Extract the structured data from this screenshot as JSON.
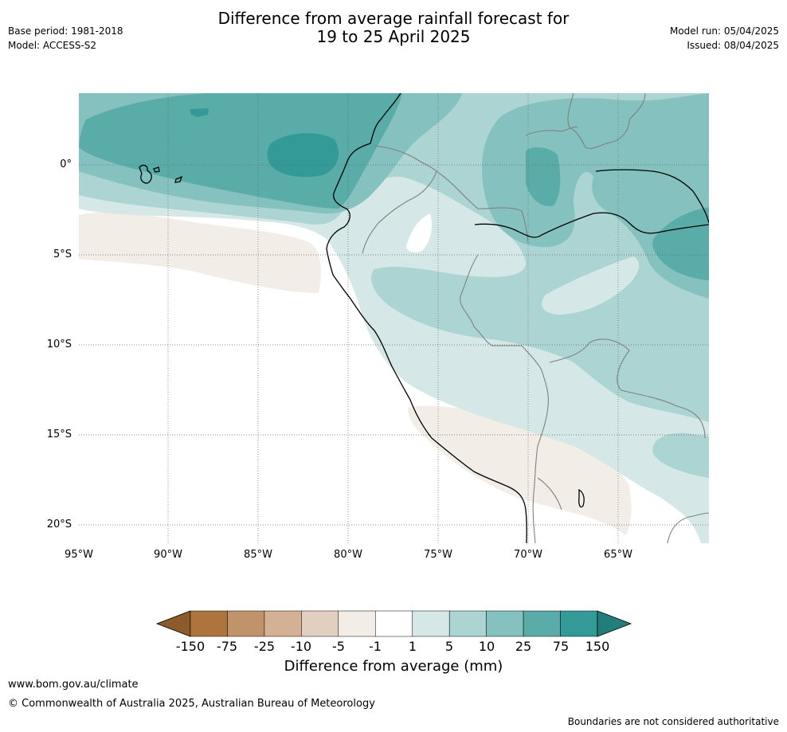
{
  "title_line1": "Difference from average rainfall forecast for",
  "title_line2": "19 to 25 April 2025",
  "meta_left": [
    "Base period: 1981-2018",
    "Model: ACCESS-S2"
  ],
  "meta_right": [
    "Model run: 05/04/2025",
    "Issued: 08/04/2025"
  ],
  "map": {
    "lat_labels": [
      "0°",
      "5°S",
      "10°S",
      "15°S",
      "20°S"
    ],
    "lon_labels": [
      "95°W",
      "90°W",
      "85°W",
      "80°W",
      "75°W",
      "70°W",
      "65°W"
    ]
  },
  "colorbar": {
    "ticks": [
      "-150",
      "-75",
      "-25",
      "-10",
      "-5",
      "-1",
      "1",
      "5",
      "10",
      "25",
      "75",
      "150"
    ],
    "colors": [
      "#8c5a2b",
      "#af733d",
      "#c0936a",
      "#d4b094",
      "#e3cfbf",
      "#f2ede7",
      "#ffffff",
      "#d5e8e7",
      "#abd4d3",
      "#84c1bf",
      "#5aaca9",
      "#339a97",
      "#237d7a"
    ],
    "label": "Difference from average (mm)"
  },
  "footer": {
    "url": "www.bom.gov.au/climate",
    "copyright": "© Commonwealth of Australia 2025, Australian Bureau of Meteorology",
    "disclaimer": "Boundaries are not considered authoritative"
  }
}
